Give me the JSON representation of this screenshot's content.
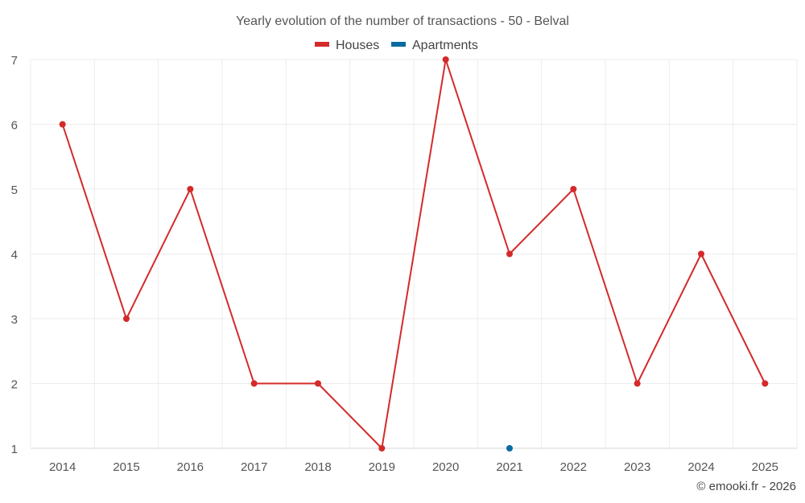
{
  "chart_data": {
    "type": "line",
    "title": "Yearly evolution of the number of transactions - 50 - Belval",
    "x": [
      "2014",
      "2015",
      "2016",
      "2017",
      "2018",
      "2019",
      "2020",
      "2021",
      "2022",
      "2023",
      "2024",
      "2025"
    ],
    "ylim": [
      1,
      7
    ],
    "yticks": [
      "1",
      "2",
      "3",
      "4",
      "5",
      "6",
      "7"
    ],
    "grid": true,
    "legend_position": "top-center",
    "series": [
      {
        "name": "Houses",
        "color": "#d42a2a",
        "values": [
          6,
          3,
          5,
          2,
          2,
          1,
          7,
          4,
          5,
          2,
          4,
          2
        ]
      },
      {
        "name": "Apartments",
        "color": "#0a6aa1",
        "values": [
          null,
          null,
          null,
          null,
          null,
          null,
          null,
          1,
          null,
          null,
          null,
          null
        ]
      }
    ]
  },
  "credit": "© emooki.fr - 2026"
}
